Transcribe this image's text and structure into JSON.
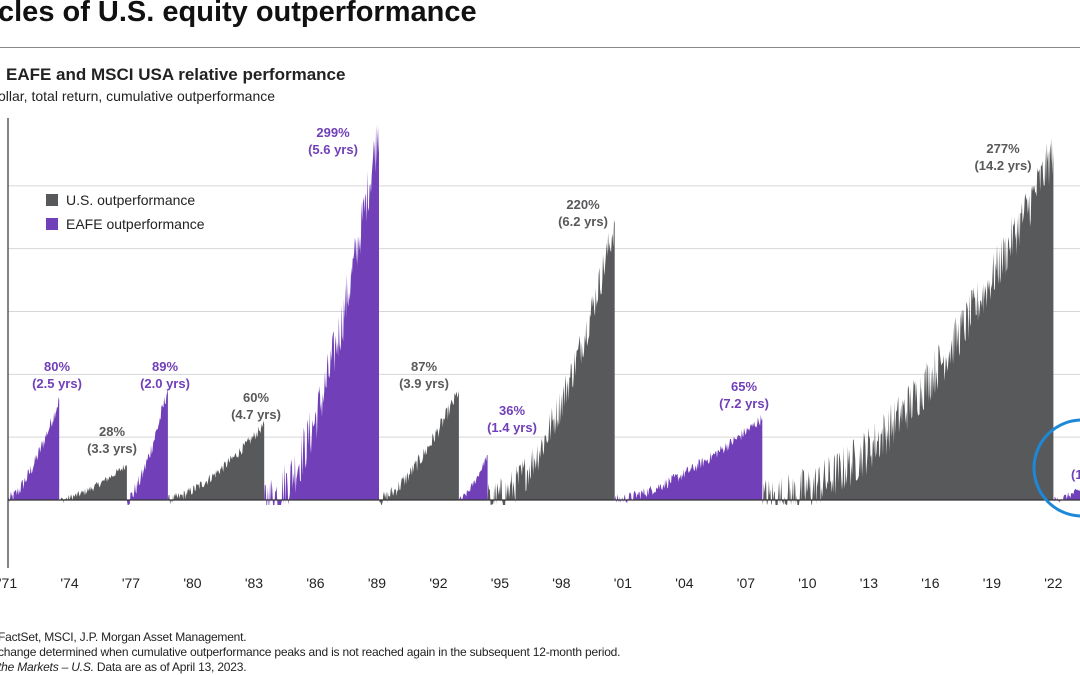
{
  "header": {
    "title": "cles of U.S. equity outperformance",
    "subtitle": "EAFE and MSCI USA relative performance",
    "subtitle2": "ollar, total return, cumulative outperformance"
  },
  "legend": {
    "us_label": "U.S. outperformance",
    "eafe_label": "EAFE outperformance"
  },
  "footer": {
    "source": "FactSet, MSCI, J.P. Morgan Asset Management.",
    "note": "change determined when cumulative outperformance peaks and is not reached again in the subsequent 12-month period.",
    "guide_italic": "the Markets – U.S.",
    "guide_rest": " Data are as of April 13, 2023."
  },
  "colors": {
    "us": "#58595b",
    "eafe": "#7140b8",
    "circle": "#1e88d8"
  },
  "chart_data": {
    "type": "area",
    "x_tick_labels": [
      "'71",
      "'74",
      "'77",
      "'80",
      "'83",
      "'86",
      "'89",
      "'92",
      "'95",
      "'98",
      "'01",
      "'04",
      "'07",
      "'10",
      "'13",
      "'16",
      "'19",
      "'22"
    ],
    "x_tick_years": [
      1971,
      1974,
      1977,
      1980,
      1983,
      1986,
      1989,
      1992,
      1995,
      1998,
      2001,
      2004,
      2007,
      2010,
      2013,
      2016,
      2019,
      2022
    ],
    "xlim": [
      1971,
      2023.3
    ],
    "ylim": [
      -70,
      300
    ],
    "grid_values": [
      50,
      100,
      150,
      200,
      250
    ],
    "legend_position": "top-left",
    "episodes": [
      {
        "series": "EAFE outperformance",
        "start": 1971.0,
        "end": 1973.5,
        "peak": 80,
        "label": "80%",
        "duration": "(2.5 yrs)"
      },
      {
        "series": "U.S. outperformance",
        "start": 1973.5,
        "end": 1976.8,
        "peak": 28,
        "label": "28%",
        "duration": "(3.3 yrs)"
      },
      {
        "series": "EAFE outperformance",
        "start": 1976.8,
        "end": 1978.8,
        "peak": 89,
        "label": "89%",
        "duration": "(2.0 yrs)"
      },
      {
        "series": "U.S. outperformance",
        "start": 1978.8,
        "end": 1983.5,
        "peak": 60,
        "label": "60%",
        "duration": "(4.7 yrs)"
      },
      {
        "series": "EAFE outperformance",
        "start": 1983.5,
        "end": 1989.1,
        "peak": 299,
        "label": "299%",
        "duration": "(5.6 yrs)"
      },
      {
        "series": "U.S. outperformance",
        "start": 1989.1,
        "end": 1993.0,
        "peak": 87,
        "label": "87%",
        "duration": "(3.9 yrs)"
      },
      {
        "series": "EAFE outperformance",
        "start": 1993.0,
        "end": 1994.4,
        "peak": 36,
        "label": "36%",
        "duration": "(1.4 yrs)"
      },
      {
        "series": "U.S. outperformance",
        "start": 1994.4,
        "end": 2000.6,
        "peak": 220,
        "label": "220%",
        "duration": "(6.2 yrs)"
      },
      {
        "series": "EAFE outperformance",
        "start": 2000.6,
        "end": 2007.8,
        "peak": 65,
        "label": "65%",
        "duration": "(7.2 yrs)"
      },
      {
        "series": "U.S. outperformance",
        "start": 2007.8,
        "end": 2022.0,
        "peak": 277,
        "label": "277%",
        "duration": "(14.2 yrs)"
      },
      {
        "series": "EAFE outperformance",
        "start": 2022.0,
        "end": 2023.3,
        "peak": 8,
        "label": "(1",
        "duration": ""
      }
    ]
  }
}
